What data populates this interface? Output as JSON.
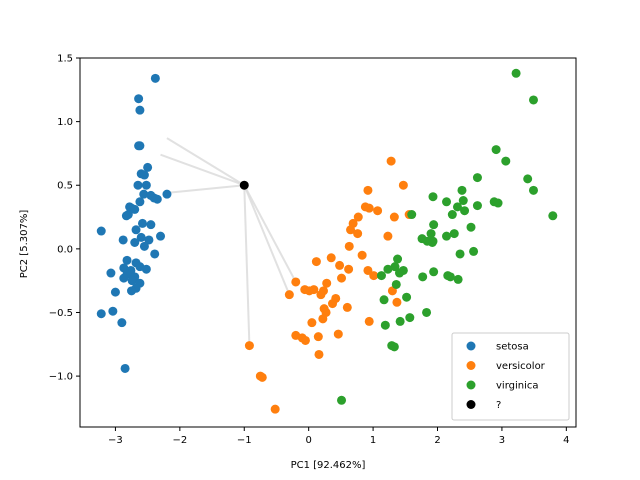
{
  "chart_data": {
    "type": "scatter",
    "title": "",
    "xlabel": "PC1 [92.462%]",
    "ylabel": "PC2 [5.307%]",
    "xlim": [
      -3.55,
      4.15
    ],
    "ylim": [
      -1.4,
      1.5
    ],
    "xticks": [
      -3,
      -2,
      -1,
      0,
      1,
      2,
      3,
      4
    ],
    "yticks": [
      -1.0,
      -0.5,
      0.0,
      0.5,
      1.0,
      1.5
    ],
    "xtick_labels": [
      "−3",
      "−2",
      "−1",
      "0",
      "1",
      "2",
      "3",
      "4"
    ],
    "ytick_labels": [
      "−1.0",
      "−0.5",
      "0.0",
      "0.5",
      "1.0",
      "1.5"
    ],
    "grid": false,
    "legend_position": "lower-right",
    "query_point": {
      "name": "?",
      "color": "#000000",
      "x": -1.0,
      "y": 0.5
    },
    "neighbor_lines": [
      {
        "x": -2.2,
        "y": 0.87
      },
      {
        "x": -2.3,
        "y": 0.74
      },
      {
        "x": -2.2,
        "y": 0.44
      },
      {
        "x": -0.2,
        "y": -0.26
      },
      {
        "x": -0.3,
        "y": -0.36
      },
      {
        "x": -0.92,
        "y": -0.76
      }
    ],
    "series": [
      {
        "name": "setosa",
        "color": "#1f77b4",
        "points": [
          [
            -2.38,
            1.34
          ],
          [
            -2.64,
            1.18
          ],
          [
            -2.62,
            1.09
          ],
          [
            -2.62,
            0.81
          ],
          [
            -2.64,
            0.81
          ],
          [
            -2.5,
            0.64
          ],
          [
            -2.6,
            0.59
          ],
          [
            -2.55,
            0.58
          ],
          [
            -2.65,
            0.5
          ],
          [
            -2.52,
            0.5
          ],
          [
            -2.56,
            0.43
          ],
          [
            -2.4,
            0.4
          ],
          [
            -2.45,
            0.42
          ],
          [
            -2.35,
            0.39
          ],
          [
            -2.2,
            0.43
          ],
          [
            -2.62,
            0.37
          ],
          [
            -2.78,
            0.33
          ],
          [
            -2.75,
            0.32
          ],
          [
            -2.7,
            0.31
          ],
          [
            -2.8,
            0.27
          ],
          [
            -2.83,
            0.26
          ],
          [
            -2.58,
            0.2
          ],
          [
            -2.45,
            0.19
          ],
          [
            -2.68,
            0.15
          ],
          [
            -3.22,
            0.14
          ],
          [
            -2.6,
            0.09
          ],
          [
            -2.48,
            0.07
          ],
          [
            -2.3,
            0.1
          ],
          [
            -2.88,
            0.07
          ],
          [
            -2.7,
            0.05
          ],
          [
            -2.55,
            0.02
          ],
          [
            -2.39,
            -0.04
          ],
          [
            -2.82,
            -0.09
          ],
          [
            -2.68,
            -0.11
          ],
          [
            -2.87,
            -0.15
          ],
          [
            -2.62,
            -0.14
          ],
          [
            -2.76,
            -0.17
          ],
          [
            -2.52,
            -0.16
          ],
          [
            -3.07,
            -0.19
          ],
          [
            -2.82,
            -0.2
          ],
          [
            -2.7,
            -0.22
          ],
          [
            -2.87,
            -0.23
          ],
          [
            -2.74,
            -0.25
          ],
          [
            -2.62,
            -0.27
          ],
          [
            -2.68,
            -0.31
          ],
          [
            -2.75,
            -0.33
          ],
          [
            -3.0,
            -0.34
          ],
          [
            -3.04,
            -0.49
          ],
          [
            -3.22,
            -0.51
          ],
          [
            -2.9,
            -0.58
          ],
          [
            -2.85,
            -0.94
          ]
        ]
      },
      {
        "name": "versicolor",
        "color": "#ff7f0e",
        "points": [
          [
            1.28,
            0.69
          ],
          [
            0.92,
            0.46
          ],
          [
            1.47,
            0.5
          ],
          [
            0.88,
            0.33
          ],
          [
            0.94,
            0.32
          ],
          [
            1.07,
            0.3
          ],
          [
            0.77,
            0.25
          ],
          [
            1.33,
            0.25
          ],
          [
            1.56,
            0.27
          ],
          [
            0.69,
            0.2
          ],
          [
            0.65,
            0.15
          ],
          [
            0.76,
            0.12
          ],
          [
            1.23,
            0.1
          ],
          [
            0.63,
            0.02
          ],
          [
            0.83,
            -0.05
          ],
          [
            0.35,
            -0.07
          ],
          [
            0.12,
            -0.1
          ],
          [
            0.48,
            -0.13
          ],
          [
            0.62,
            -0.16
          ],
          [
            0.92,
            -0.17
          ],
          [
            1.01,
            -0.21
          ],
          [
            0.51,
            -0.23
          ],
          [
            0.28,
            -0.27
          ],
          [
            -0.2,
            -0.26
          ],
          [
            0.23,
            -0.33
          ],
          [
            0.08,
            -0.32
          ],
          [
            0.19,
            -0.36
          ],
          [
            0.42,
            -0.39
          ],
          [
            0.37,
            -0.43
          ],
          [
            1.3,
            -0.33
          ],
          [
            0.01,
            -0.33
          ],
          [
            -0.06,
            -0.32
          ],
          [
            0.24,
            -0.47
          ],
          [
            0.27,
            -0.5
          ],
          [
            0.6,
            -0.46
          ],
          [
            1.37,
            -0.42
          ],
          [
            0.22,
            -0.55
          ],
          [
            0.94,
            -0.57
          ],
          [
            -0.3,
            -0.36
          ],
          [
            0.05,
            -0.58
          ],
          [
            -0.2,
            -0.68
          ],
          [
            0.46,
            -0.67
          ],
          [
            -0.1,
            -0.7
          ],
          [
            -0.05,
            -0.72
          ],
          [
            0.15,
            -0.69
          ],
          [
            0.16,
            -0.83
          ],
          [
            -0.92,
            -0.76
          ],
          [
            -0.75,
            -1.0
          ],
          [
            -0.72,
            -1.01
          ],
          [
            -0.52,
            -1.26
          ]
        ]
      },
      {
        "name": "virginica",
        "color": "#2ca02c",
        "points": [
          [
            3.22,
            1.38
          ],
          [
            3.49,
            1.17
          ],
          [
            2.91,
            0.78
          ],
          [
            3.06,
            0.69
          ],
          [
            2.62,
            0.56
          ],
          [
            3.4,
            0.55
          ],
          [
            2.38,
            0.46
          ],
          [
            3.49,
            0.46
          ],
          [
            1.93,
            0.41
          ],
          [
            2.14,
            0.37
          ],
          [
            2.4,
            0.38
          ],
          [
            2.88,
            0.37
          ],
          [
            2.31,
            0.33
          ],
          [
            2.62,
            0.34
          ],
          [
            2.94,
            0.36
          ],
          [
            2.42,
            0.3
          ],
          [
            1.94,
            0.19
          ],
          [
            2.23,
            0.27
          ],
          [
            3.79,
            0.26
          ],
          [
            1.6,
            0.27
          ],
          [
            1.9,
            0.12
          ],
          [
            2.52,
            0.17
          ],
          [
            2.26,
            0.12
          ],
          [
            2.14,
            0.1
          ],
          [
            1.76,
            0.08
          ],
          [
            1.93,
            0.06
          ],
          [
            1.84,
            0.06
          ],
          [
            1.92,
            0.05
          ],
          [
            2.56,
            -0.02
          ],
          [
            2.35,
            -0.04
          ],
          [
            1.38,
            -0.08
          ],
          [
            1.34,
            -0.14
          ],
          [
            1.47,
            -0.17
          ],
          [
            1.23,
            -0.16
          ],
          [
            1.41,
            -0.19
          ],
          [
            1.13,
            -0.21
          ],
          [
            1.94,
            -0.18
          ],
          [
            2.16,
            -0.21
          ],
          [
            2.2,
            -0.22
          ],
          [
            1.77,
            -0.22
          ],
          [
            2.32,
            -0.24
          ],
          [
            1.36,
            -0.28
          ],
          [
            1.52,
            -0.38
          ],
          [
            1.17,
            -0.4
          ],
          [
            1.83,
            -0.5
          ],
          [
            1.57,
            -0.54
          ],
          [
            1.42,
            -0.57
          ],
          [
            1.19,
            -0.6
          ],
          [
            1.29,
            -0.76
          ],
          [
            1.33,
            -0.77
          ],
          [
            0.51,
            -1.19
          ]
        ]
      }
    ]
  }
}
